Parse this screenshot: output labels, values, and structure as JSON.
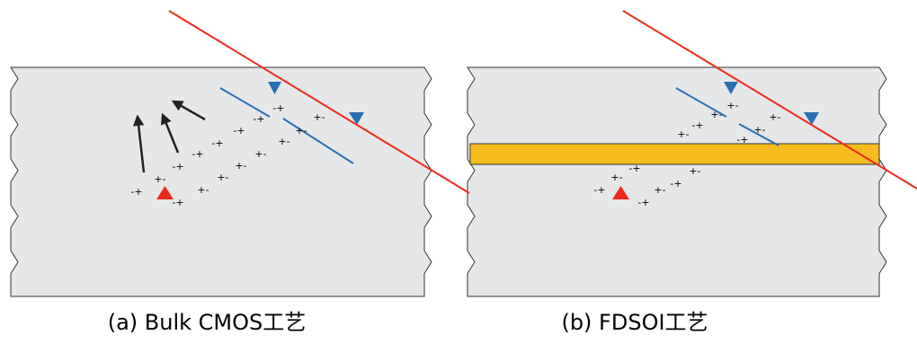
{
  "panels": [
    {
      "caption": "(a) Bulk CMOS工艺",
      "charges": [
        "-+",
        "+-",
        "-+",
        "-+",
        "+-",
        "-+",
        "+-",
        "-+",
        "+-",
        "-+",
        "+-",
        "-+",
        "+-",
        "-+",
        "+-",
        "+-"
      ]
    },
    {
      "caption": "(b) FDSOI工艺",
      "charges": [
        "+-",
        "+-",
        "-+",
        "+-",
        "+-",
        "+-",
        "-+",
        "+-",
        "-+",
        "-+",
        "-+",
        "+-",
        "-+",
        "+-"
      ]
    }
  ]
}
